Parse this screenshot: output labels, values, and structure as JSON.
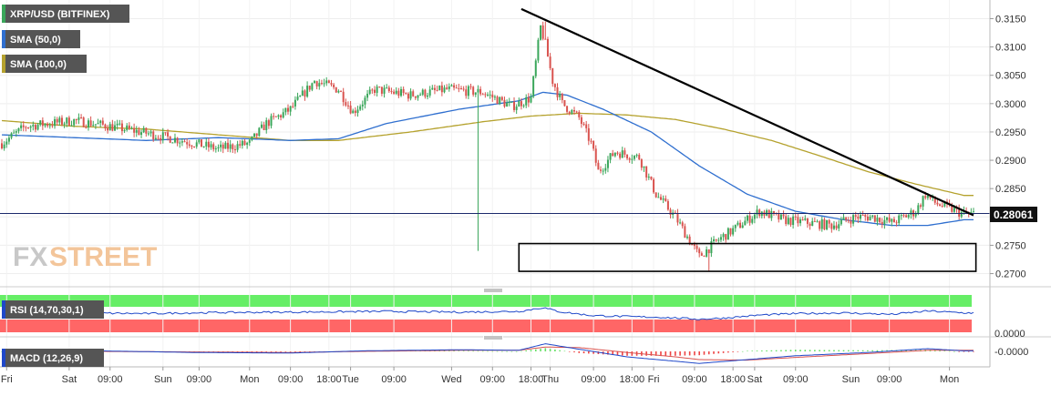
{
  "legend": {
    "instrument": "XRP/USD (BITFINEX)",
    "sma50": "SMA (50,0)",
    "sma100": "SMA (100,0)"
  },
  "rsi_label": "RSI (14,70,30,1)",
  "macd_label": "MACD (12,26,9)",
  "watermark": {
    "fx": "FX",
    "street": "STREET"
  },
  "colors": {
    "sma50": "#2f6fcf",
    "sma100": "#b5a22e",
    "bull": "#3aa65a",
    "bear": "#d9534f",
    "rsi_line": "#1f48c9",
    "rsi_over": "#66ee66",
    "rsi_under": "#ff6666",
    "macd_line": "#1f48c9",
    "signal_line": "#d9534f",
    "label_bg": "#555555"
  },
  "chart_data": {
    "type": "candlestick",
    "price_axis": {
      "ticks": [
        "0.3150",
        "0.3100",
        "0.3050",
        "0.3000",
        "0.2950",
        "0.2900",
        "0.2850",
        "0.2800",
        "0.2750",
        "0.2700"
      ],
      "range": [
        0.268,
        0.317
      ],
      "current_price": "0.28061"
    },
    "time_axis": {
      "labels": [
        "Fri",
        "Sat",
        "09:00",
        "Sun",
        "09:00",
        "Mon",
        "09:00",
        "18:00",
        "Tue",
        "09:00",
        "Wed",
        "09:00",
        "18:00",
        "Thu",
        "09:00",
        "18:00",
        "Fri",
        "09:00",
        "18:00",
        "Sat",
        "09:00",
        "Sun",
        "09:00",
        "Mon"
      ],
      "label_pos": [
        2,
        28,
        45,
        67,
        82,
        103,
        120,
        136,
        145,
        163,
        187,
        204,
        220,
        228,
        246,
        262,
        271,
        288,
        304,
        313,
        330,
        353,
        369,
        394
      ]
    },
    "price_anchors": {
      "bars": [
        0,
        10,
        20,
        30,
        45,
        60,
        75,
        90,
        103,
        110,
        120,
        130,
        140,
        146,
        155,
        170,
        185,
        200,
        212,
        220,
        224,
        226,
        229,
        233,
        240,
        245,
        248,
        255,
        265,
        272,
        280,
        290,
        298,
        305,
        315,
        325,
        335,
        345,
        355,
        362,
        370,
        380,
        384,
        388,
        394,
        400
      ],
      "close": [
        0.293,
        0.296,
        0.2965,
        0.297,
        0.296,
        0.2948,
        0.2935,
        0.292,
        0.293,
        0.2965,
        0.299,
        0.304,
        0.3025,
        0.2985,
        0.3025,
        0.3015,
        0.3025,
        0.302,
        0.2995,
        0.301,
        0.3135,
        0.3105,
        0.304,
        0.3,
        0.2975,
        0.293,
        0.288,
        0.2915,
        0.2905,
        0.284,
        0.28,
        0.273,
        0.276,
        0.278,
        0.281,
        0.2795,
        0.279,
        0.2785,
        0.28,
        0.28,
        0.279,
        0.281,
        0.284,
        0.2825,
        0.2815,
        0.2805
      ]
    },
    "highs_lows_marked": [
      {
        "bar": 198,
        "low": 0.274
      },
      {
        "bar": 226,
        "high": 0.3145
      },
      {
        "bar": 294,
        "low": 0.2705
      }
    ],
    "sma50": {
      "name": "SMA (50,0)",
      "bars": [
        0,
        30,
        60,
        90,
        120,
        140,
        160,
        190,
        215,
        225,
        235,
        250,
        270,
        290,
        310,
        330,
        350,
        370,
        385,
        400
      ],
      "values": [
        0.2945,
        0.294,
        0.2935,
        0.294,
        0.2935,
        0.2938,
        0.2965,
        0.299,
        0.3005,
        0.302,
        0.3015,
        0.299,
        0.295,
        0.289,
        0.284,
        0.281,
        0.2795,
        0.2785,
        0.2785,
        0.2795
      ]
    },
    "sma100": {
      "name": "SMA (100,0)",
      "bars": [
        0,
        30,
        60,
        90,
        120,
        140,
        170,
        200,
        220,
        240,
        260,
        280,
        300,
        320,
        340,
        360,
        380,
        390,
        400
      ],
      "values": [
        0.297,
        0.296,
        0.2955,
        0.2945,
        0.2935,
        0.2935,
        0.295,
        0.2968,
        0.2978,
        0.2983,
        0.298,
        0.2972,
        0.2955,
        0.2935,
        0.2908,
        0.288,
        0.2858,
        0.2848,
        0.2838
      ]
    },
    "trendline": {
      "from": {
        "bar": 216,
        "price": 0.3167
      },
      "to": {
        "bar": 404,
        "price": 0.2803
      }
    },
    "support_box": {
      "from_bar": 215,
      "to_bar": 405,
      "top": 0.2753,
      "bottom": 0.2704
    },
    "rsi": {
      "ticks": [],
      "bars": [
        0,
        30,
        60,
        90,
        120,
        140,
        160,
        190,
        215,
        225,
        232,
        245,
        260,
        275,
        290,
        300,
        315,
        330,
        350,
        370,
        385,
        400
      ],
      "values": [
        55,
        52,
        50,
        53,
        54,
        55,
        56,
        54,
        56,
        66,
        55,
        45,
        42,
        40,
        35,
        38,
        46,
        50,
        52,
        48,
        57,
        52
      ]
    },
    "macd": {
      "ticks": [
        "-0.0000"
      ],
      "bars": [
        0,
        40,
        80,
        120,
        150,
        190,
        215,
        226,
        240,
        260,
        280,
        290,
        310,
        330,
        360,
        385,
        400
      ],
      "macd": [
        0,
        0.0001,
        -0.0002,
        -0.0003,
        0.0001,
        0.0003,
        0.0002,
        0.0014,
        0.0004,
        -0.001,
        -0.0018,
        -0.0022,
        -0.0015,
        -0.0008,
        -0.0002,
        0.0005,
        0.0001
      ],
      "signal": [
        0,
        0,
        -0.0001,
        -0.0002,
        0,
        0.0002,
        0.0002,
        0.0008,
        0.0007,
        -0.0002,
        -0.001,
        -0.0015,
        -0.0016,
        -0.0011,
        -0.0004,
        0.0002,
        0.0002
      ]
    },
    "bottom_ticks_right": [
      "0.0000"
    ]
  }
}
